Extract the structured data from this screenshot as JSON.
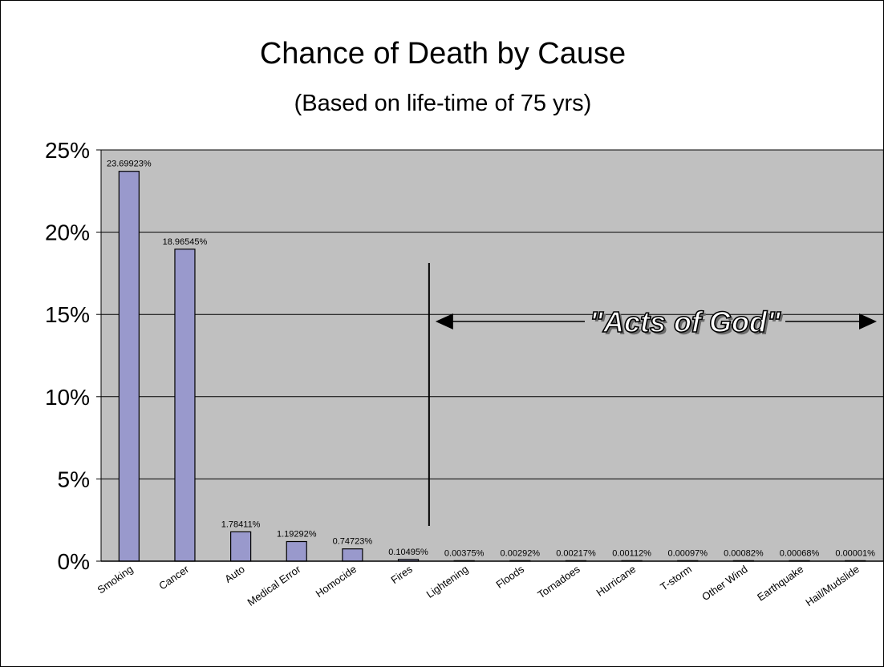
{
  "chart_data": {
    "type": "bar",
    "title": "Chance of Death by Cause",
    "subtitle": "(Based on life-time of 75 yrs)",
    "categories": [
      "Smoking",
      "Cancer",
      "Auto",
      "Medical Error",
      "Homocide",
      "Fires",
      "Lightening",
      "Floods",
      "Tornadoes",
      "Hurricane",
      "T-storm",
      "Other Wind",
      "Earthquake",
      "Hail/Mudslide"
    ],
    "values": [
      23.69923,
      18.96545,
      1.78411,
      1.19292,
      0.74723,
      0.10495,
      0.00375,
      0.00292,
      0.00217,
      0.00112,
      0.00097,
      0.00082,
      0.00068,
      1e-05
    ],
    "data_labels": [
      "23.69923%",
      "18.96545%",
      "1.78411%",
      "1.19292%",
      "0.74723%",
      "0.10495%",
      "0.00375%",
      "0.00292%",
      "0.00217%",
      "0.00112%",
      "0.00097%",
      "0.00082%",
      "0.00068%",
      "0.00001%"
    ],
    "ylim": [
      0,
      25
    ],
    "yticks": [
      0,
      5,
      10,
      15,
      20,
      25
    ],
    "ytick_labels": [
      "0%",
      "5%",
      "10%",
      "15%",
      "20%",
      "25%"
    ],
    "grid": true,
    "legend": "none",
    "annotation": {
      "text": "\"Acts of God\"",
      "from_category": "Lightening",
      "to_category": "Hail/Mudslide"
    },
    "colors": {
      "bar_fill": "#9999cc",
      "bar_stroke": "#000000",
      "plot_background": "#c0c0c0",
      "gridline": "#000000"
    }
  }
}
